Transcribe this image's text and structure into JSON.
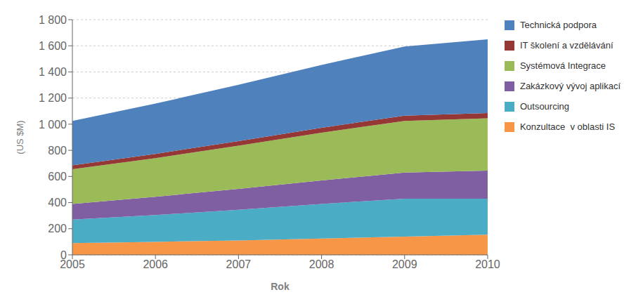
{
  "chart_data": {
    "type": "area",
    "stacked": true,
    "x": [
      2005,
      2006,
      2007,
      2008,
      2009,
      2010
    ],
    "xlim": [
      2005,
      2010
    ],
    "xticks": [
      2005,
      2006,
      2007,
      2008,
      2009,
      2010
    ],
    "xlabel": "Rok",
    "ylabel": "(US $M)",
    "ylim": [
      0,
      1800
    ],
    "yticks": [
      0,
      200,
      400,
      600,
      800,
      {
        "value": 1000,
        "label": "1 000"
      },
      {
        "value": 1200,
        "label": "1 200"
      },
      {
        "value": 1400,
        "label": "1 400"
      },
      {
        "value": 1600,
        "label": "1 600"
      },
      {
        "value": 1800,
        "label": "1 800"
      }
    ],
    "grid": "y",
    "legend": "right",
    "series": [
      {
        "name": "Konzultace  v oblasti IS",
        "color": "#F79646",
        "values": [
          90,
          100,
          110,
          125,
          140,
          155
        ]
      },
      {
        "name": "Outsourcing",
        "color": "#4BACC6",
        "values": [
          180,
          205,
          235,
          265,
          290,
          275
        ]
      },
      {
        "name": "Zakázkový vývoj aplikací",
        "color": "#7F5FA2",
        "values": [
          120,
          140,
          160,
          180,
          200,
          215
        ]
      },
      {
        "name": "Systémová Integrace",
        "color": "#9BBB59",
        "values": [
          265,
          295,
          330,
          365,
          395,
          400
        ]
      },
      {
        "name": "IT školení a vzdělávání",
        "color": "#953735",
        "values": [
          30,
          33,
          36,
          38,
          40,
          40
        ]
      },
      {
        "name": "Technická podpora",
        "color": "#4F81BD",
        "values": [
          340,
          385,
          430,
          480,
          530,
          565
        ]
      }
    ]
  }
}
